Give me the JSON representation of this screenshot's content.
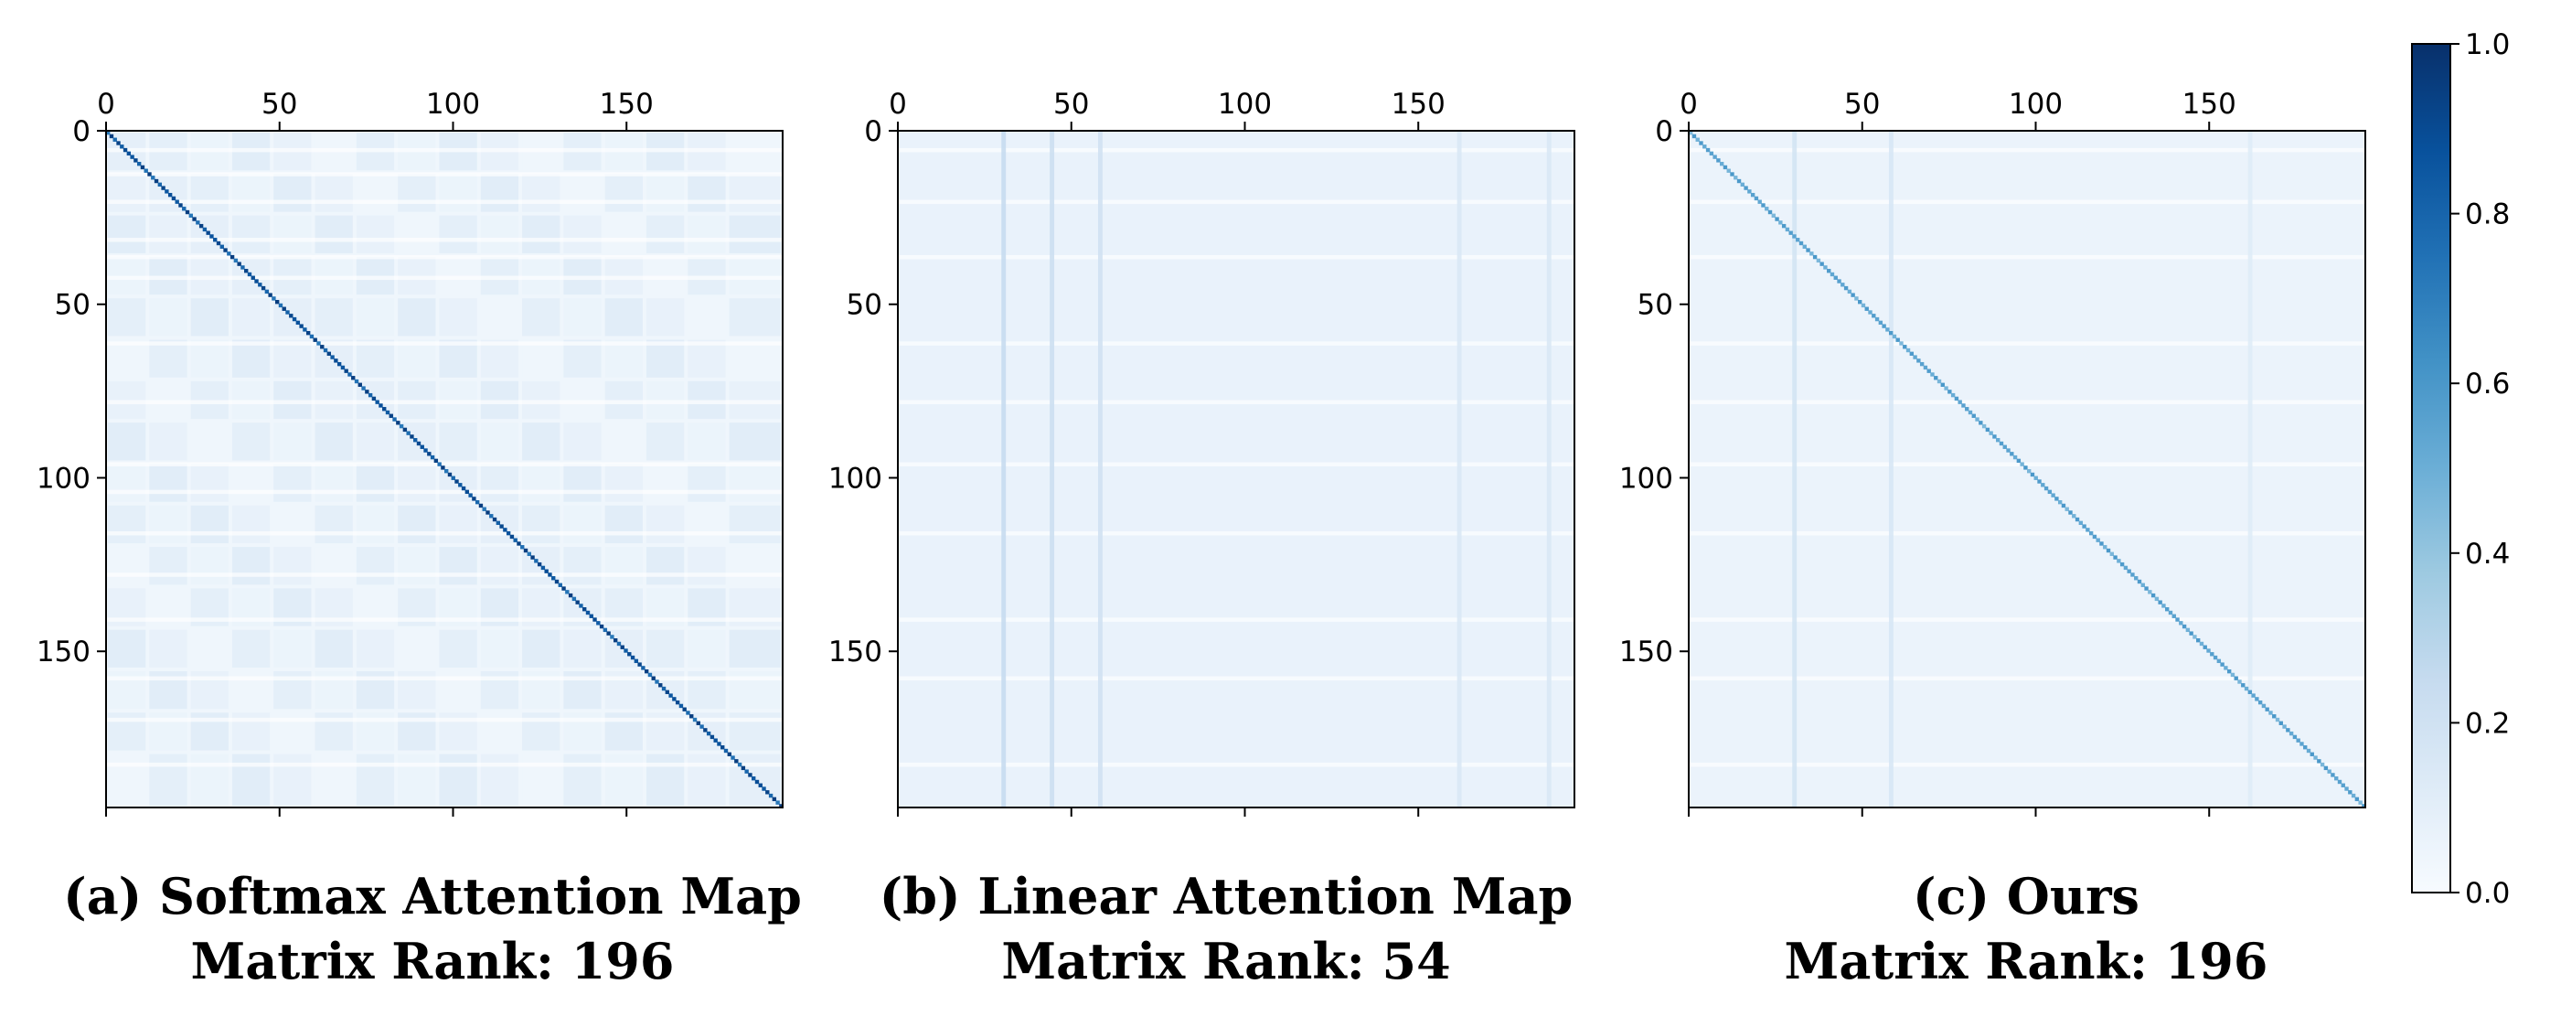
{
  "chart_data": [
    {
      "type": "heatmap",
      "title": "(a) Softmax Attention Map",
      "subtitle": "Matrix Rank: 196",
      "size": 196,
      "x_ticks": [
        0,
        50,
        100,
        150
      ],
      "y_ticks": [
        0,
        50,
        100,
        150
      ],
      "xlim": [
        0,
        195
      ],
      "ylim": [
        0,
        195
      ],
      "pattern": {
        "background": 0.04,
        "diagonal_peak": 0.95,
        "stripe_rows": [
          5,
          12,
          20,
          31,
          36,
          42,
          61,
          78,
          96,
          104,
          116,
          128,
          141,
          158,
          170,
          183
        ],
        "block_boundaries": [
          0,
          12,
          24,
          36,
          48,
          60,
          72,
          84,
          96,
          108,
          120,
          132,
          144,
          156,
          168,
          180,
          196
        ]
      }
    },
    {
      "type": "heatmap",
      "title": "(b) Linear Attention Map",
      "subtitle": "Matrix Rank: 54",
      "size": 196,
      "x_ticks": [
        0,
        50,
        100,
        150
      ],
      "y_ticks": [
        0,
        50,
        100,
        150
      ],
      "xlim": [
        0,
        195
      ],
      "ylim": [
        0,
        195
      ],
      "pattern": {
        "background": 0.07,
        "column_peaks": [
          {
            "col": 30,
            "value": 0.25
          },
          {
            "col": 44,
            "value": 0.22
          },
          {
            "col": 58,
            "value": 0.2
          },
          {
            "col": 162,
            "value": 0.15
          },
          {
            "col": 188,
            "value": 0.15
          }
        ],
        "stripe_rows": [
          5,
          20,
          36,
          61,
          78,
          96,
          116,
          141,
          158,
          183
        ]
      }
    },
    {
      "type": "heatmap",
      "title": "(c) Ours",
      "subtitle": "Matrix Rank: 196",
      "size": 196,
      "x_ticks": [
        0,
        50,
        100,
        150
      ],
      "y_ticks": [
        0,
        50,
        100,
        150
      ],
      "xlim": [
        0,
        195
      ],
      "ylim": [
        0,
        195
      ],
      "pattern": {
        "background": 0.06,
        "diagonal_peak": 0.6,
        "column_peaks": [
          {
            "col": 30,
            "value": 0.18
          },
          {
            "col": 58,
            "value": 0.16
          },
          {
            "col": 162,
            "value": 0.12
          }
        ],
        "stripe_rows": [
          5,
          20,
          36,
          61,
          78,
          96,
          116,
          141,
          158,
          183
        ]
      }
    }
  ],
  "colorbar": {
    "colormap": "Blues",
    "range": [
      0.0,
      1.0
    ],
    "ticks": [
      "0.0",
      "0.2",
      "0.4",
      "0.6",
      "0.8",
      "1.0"
    ]
  }
}
